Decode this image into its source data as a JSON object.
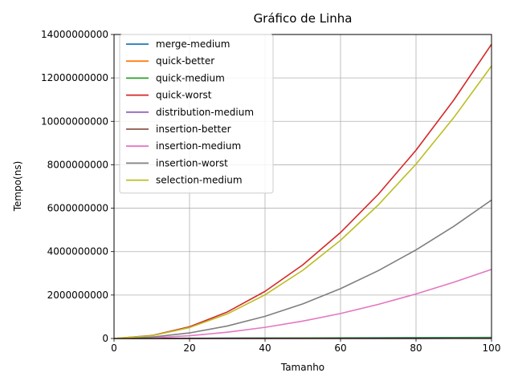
{
  "chart_data": {
    "type": "line",
    "title": "Gráfico de Linha",
    "xlabel": "Tamanho",
    "ylabel": "Tempo(ns)",
    "xlim": [
      0,
      100
    ],
    "ylim": [
      0,
      14000000000
    ],
    "xticks": [
      0,
      20,
      40,
      60,
      80,
      100
    ],
    "xtick_labels": [
      "0",
      "20",
      "40",
      "60",
      "80",
      "100"
    ],
    "yticks": [
      0,
      2000000000,
      4000000000,
      6000000000,
      8000000000,
      10000000000,
      12000000000,
      14000000000
    ],
    "ytick_labels": [
      "0",
      "2000000000",
      "4000000000",
      "6000000000",
      "8000000000",
      "10000000000",
      "12000000000",
      "14000000000"
    ],
    "grid": true,
    "legend_position": "top-left",
    "x": [
      0,
      10,
      20,
      30,
      40,
      50,
      60,
      70,
      80,
      90,
      100
    ],
    "series": [
      {
        "name": "merge-medium",
        "color": "#1f77b4",
        "values": [
          0,
          5000000,
          10000000,
          15000000,
          20000000,
          25000000,
          30000000,
          35000000,
          40000000,
          45000000,
          50000000
        ]
      },
      {
        "name": "quick-better",
        "color": "#ff7f0e",
        "values": [
          0,
          3000000,
          6000000,
          9000000,
          12000000,
          15000000,
          18000000,
          21000000,
          24000000,
          27000000,
          30000000
        ]
      },
      {
        "name": "quick-medium",
        "color": "#2ca02c",
        "values": [
          0,
          4000000,
          8000000,
          12000000,
          16000000,
          20000000,
          24000000,
          28000000,
          32000000,
          36000000,
          40000000
        ]
      },
      {
        "name": "quick-worst",
        "color": "#d62728",
        "values": [
          0,
          135000000,
          540000000,
          1220000000,
          2170000000,
          3390000000,
          4880000000,
          6640000000,
          8670000000,
          10980000000,
          13550000000
        ]
      },
      {
        "name": "distribution-medium",
        "color": "#9467bd",
        "values": [
          0,
          1000000,
          2000000,
          3000000,
          4000000,
          5000000,
          6000000,
          7000000,
          8000000,
          9000000,
          10000000
        ]
      },
      {
        "name": "insertion-better",
        "color": "#8c564b",
        "values": [
          0,
          500000,
          1000000,
          1500000,
          2000000,
          2500000,
          3000000,
          3500000,
          4000000,
          4500000,
          5000000
        ]
      },
      {
        "name": "insertion-medium",
        "color": "#e377c2",
        "values": [
          0,
          32000000,
          128000000,
          288000000,
          512000000,
          800000000,
          1150000000,
          1570000000,
          2050000000,
          2590000000,
          3180000000
        ]
      },
      {
        "name": "insertion-worst",
        "color": "#7f7f7f",
        "values": [
          0,
          64000000,
          255000000,
          574000000,
          1020000000,
          1594000000,
          2295000000,
          3124000000,
          4080000000,
          5164000000,
          6375000000
        ]
      },
      {
        "name": "selection-medium",
        "color": "#bcbd22",
        "values": [
          0,
          125000000,
          502000000,
          1130000000,
          2010000000,
          3140000000,
          4520000000,
          6150000000,
          8030000000,
          10170000000,
          12550000000
        ]
      }
    ]
  }
}
